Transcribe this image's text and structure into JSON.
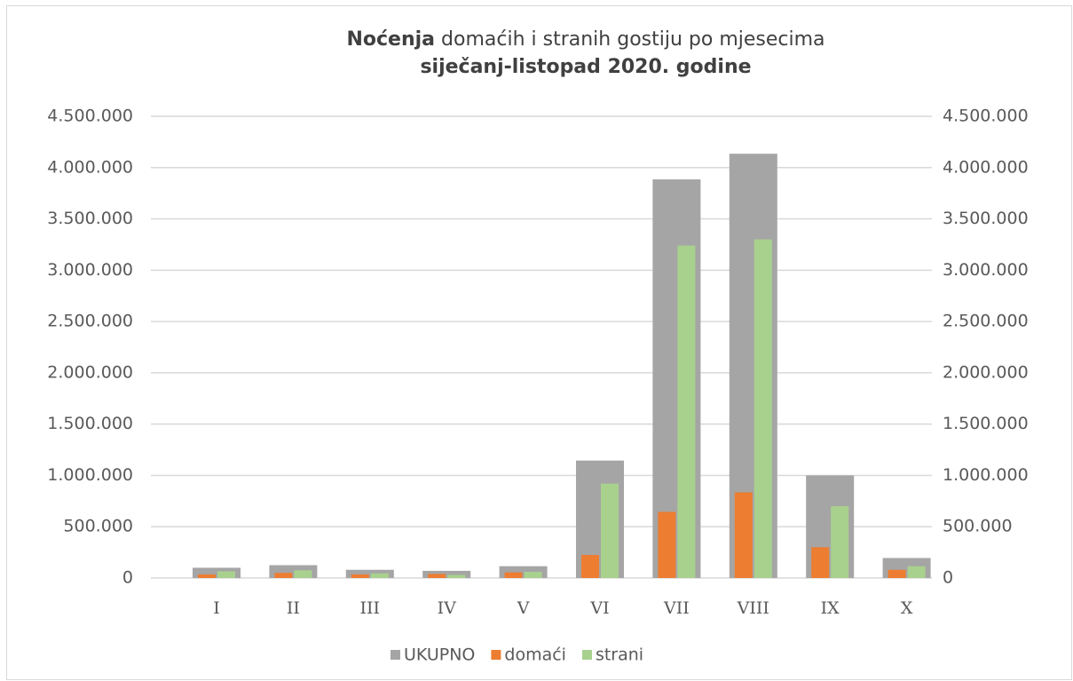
{
  "chart_data": {
    "type": "bar",
    "title": {
      "bold": "Noćenja",
      "rest": "domaćih i stranih gostiju po mjesecima"
    },
    "subtitle": "siječanj-listopad 2020. godine",
    "categories": [
      "I",
      "II",
      "III",
      "IV",
      "V",
      "VI",
      "VII",
      "VIII",
      "IX",
      "X"
    ],
    "series": [
      {
        "name": "UKUPNO",
        "color": "#a5a5a5",
        "values": [
          100000,
          125000,
          80000,
          70000,
          115000,
          1145000,
          3885000,
          4135000,
          1000000,
          195000
        ]
      },
      {
        "name": "domaći",
        "color": "#ed7d31",
        "axis": "y2",
        "values": [
          35000,
          50000,
          35000,
          40000,
          55000,
          225000,
          645000,
          835000,
          300000,
          80000
        ]
      },
      {
        "name": "strani",
        "color": "#a9d18e",
        "axis": "y2",
        "values": [
          65000,
          75000,
          45000,
          30000,
          60000,
          920000,
          3240000,
          3300000,
          700000,
          115000
        ]
      }
    ],
    "ylim": [
      0,
      4500000
    ],
    "yticks": [
      0,
      {
        "value": 500000,
        "label": "500.000"
      },
      {
        "value": 1000000,
        "label": "1.000.000"
      },
      {
        "value": 1500000,
        "label": "1.500.000"
      },
      {
        "value": 2000000,
        "label": "2.000.000"
      },
      {
        "value": 2500000,
        "label": "2.500.000"
      },
      {
        "value": 3000000,
        "label": "3.000.000"
      },
      {
        "value": 3500000,
        "label": "3.500.000"
      },
      {
        "value": 4000000,
        "label": "4.000.000"
      },
      {
        "value": 4500000,
        "label": "4.500.000"
      }
    ],
    "y2lim": [
      0,
      4500000
    ],
    "y2ticks": [
      0,
      {
        "value": 500000,
        "label": "500.000"
      },
      {
        "value": 1000000,
        "label": "1.000.000"
      },
      {
        "value": 1500000,
        "label": "1.500.000"
      },
      {
        "value": 2000000,
        "label": "2.000.000"
      },
      {
        "value": 2500000,
        "label": "2.500.000"
      },
      {
        "value": 3000000,
        "label": "3.000.000"
      },
      {
        "value": 3500000,
        "label": "3.500.000"
      },
      {
        "value": 4000000,
        "label": "4.000.000"
      },
      {
        "value": 4500000,
        "label": "4.500.000"
      }
    ],
    "grid": true,
    "legend": "bottom"
  }
}
